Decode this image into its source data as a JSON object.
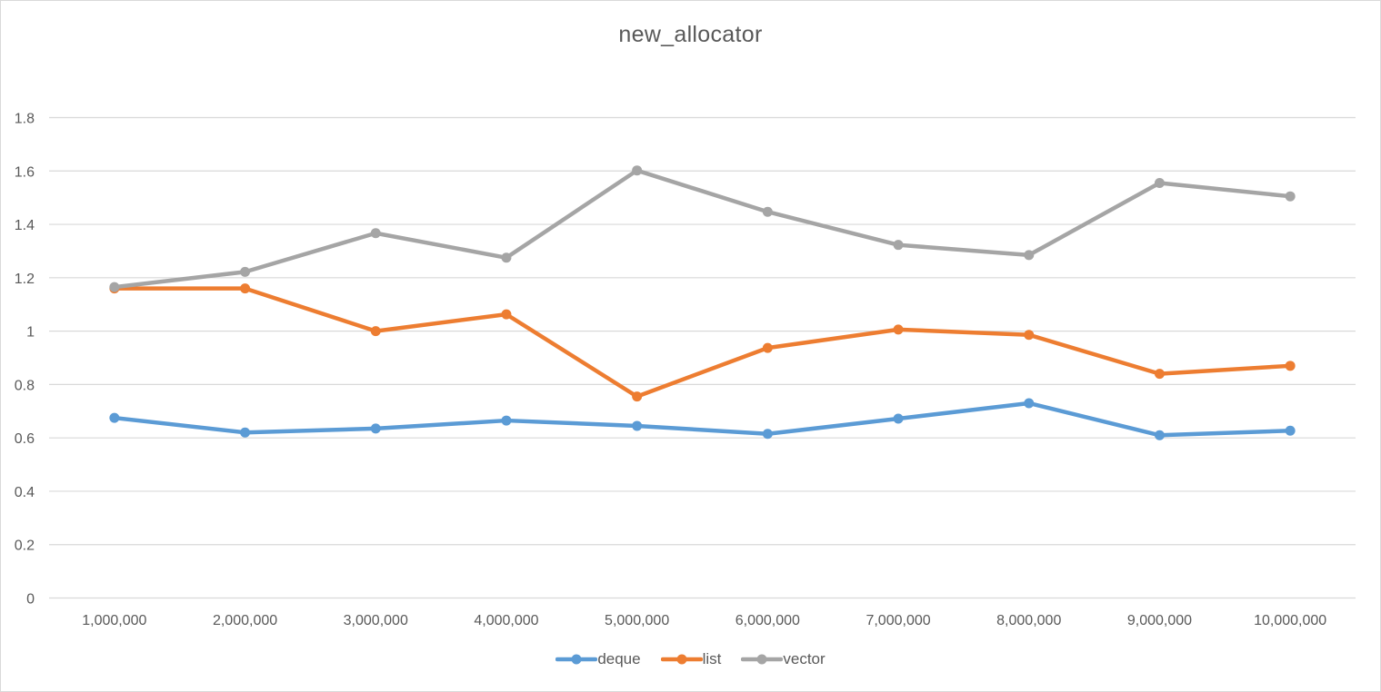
{
  "chart_data": {
    "type": "line",
    "title": "new_allocator",
    "categories": [
      "1,000,000",
      "2,000,000",
      "3,000,000",
      "4,000,000",
      "5,000,000",
      "6,000,000",
      "7,000,000",
      "8,000,000",
      "9,000,000",
      "10,000,000"
    ],
    "series": [
      {
        "name": "deque",
        "color": "#5b9bd5",
        "values": [
          0.675,
          0.62,
          0.635,
          0.665,
          0.645,
          0.615,
          0.672,
          0.73,
          0.61,
          0.627
        ]
      },
      {
        "name": "list",
        "color": "#ed7d31",
        "values": [
          1.16,
          1.16,
          1.0,
          1.063,
          0.755,
          0.937,
          1.006,
          0.986,
          0.84,
          0.87
        ]
      },
      {
        "name": "vector",
        "color": "#a5a5a5",
        "values": [
          1.165,
          1.222,
          1.367,
          1.275,
          1.602,
          1.447,
          1.323,
          1.285,
          1.555,
          1.505
        ]
      }
    ],
    "y_ticks": [
      "0",
      "0.2",
      "0.4",
      "0.6",
      "0.8",
      "1",
      "1.2",
      "1.4",
      "1.6",
      "1.8"
    ],
    "ylim": [
      0,
      1.8
    ],
    "grid": true,
    "legend_position": "bottom",
    "xlabel": "",
    "ylabel": ""
  }
}
